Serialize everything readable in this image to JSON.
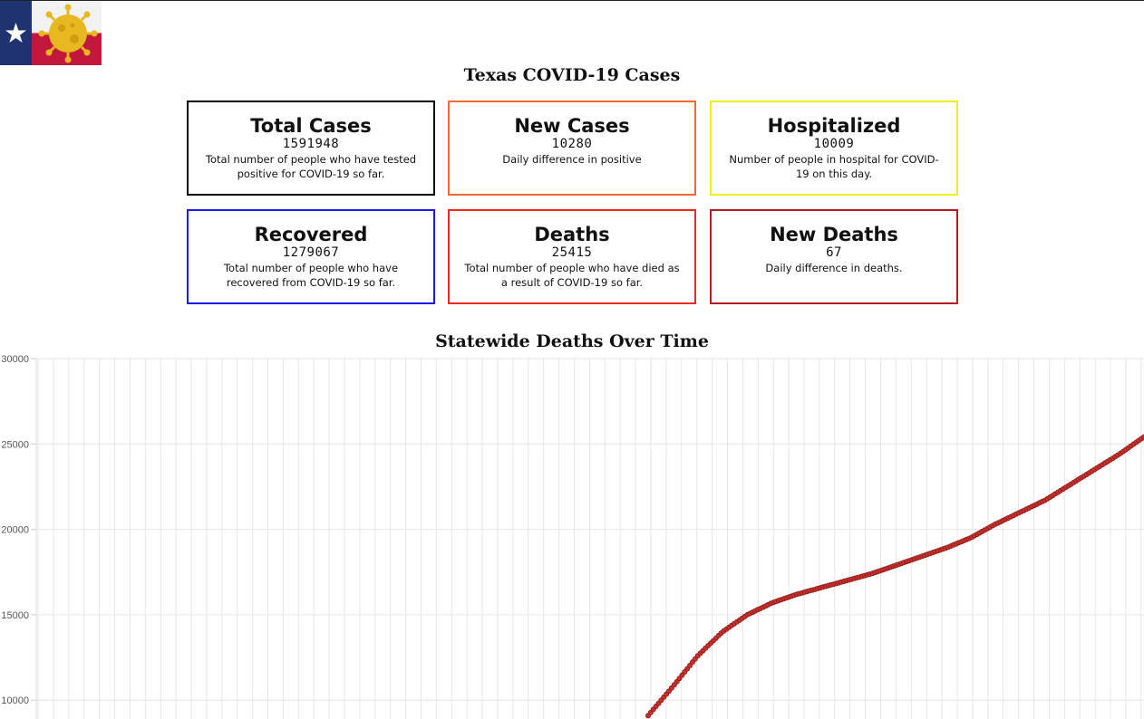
{
  "page": {
    "title": "Texas COVID-19 Cases",
    "chart_title": "Statewide Deaths Over Time"
  },
  "colors": {
    "black": "#000000",
    "orange": "#f26b2e",
    "yellow": "#f2ee1a",
    "blue": "#1a1aee",
    "red": "#ee2a1a",
    "darkred": "#b21c1c",
    "point_fill": "#c9302c",
    "point_stroke": "#8a1c1a",
    "grid": "#e6e6e6"
  },
  "cards": [
    {
      "title": "Total Cases",
      "value": "1591948",
      "desc": "Total number of people who have tested positive for COVID-19 so far.",
      "color": "#000000"
    },
    {
      "title": "New Cases",
      "value": "10280",
      "desc": "Daily difference in positive",
      "color": "#f26b2e"
    },
    {
      "title": "Hospitalized",
      "value": "10009",
      "desc": "Number of people in hospital for COVID-19 on this day.",
      "color": "#f2ee1a"
    },
    {
      "title": "Recovered",
      "value": "1279067",
      "desc": "Total number of people who have recovered from COVID-19 so far.",
      "color": "#1a1aee"
    },
    {
      "title": "Deaths",
      "value": "25415",
      "desc": "Total number of people who have died as a result of COVID-19 so far.",
      "color": "#ee2a1a"
    },
    {
      "title": "New Deaths",
      "value": "67",
      "desc": "Daily difference in deaths.",
      "color": "#b21c1c"
    }
  ],
  "chart_data": {
    "type": "scatter",
    "title": "Statewide Deaths Over Time",
    "xlabel": "",
    "ylabel": "",
    "ylim": [
      9000,
      30000
    ],
    "yticks": [
      "30000",
      "25000",
      "20000",
      "15000",
      "10000"
    ],
    "grid": true,
    "series": [
      {
        "x": [
          0,
          10,
          20,
          30,
          40,
          50,
          60,
          70,
          80,
          90,
          100,
          110,
          120,
          130,
          140,
          150,
          160,
          170,
          180,
          190,
          200
        ],
        "y": [
          9100,
          10800,
          12600,
          14000,
          15000,
          15700,
          16200,
          16600,
          17000,
          17400,
          17900,
          18400,
          18900,
          19500,
          20300,
          21000,
          21700,
          22600,
          23500,
          24400,
          25415
        ]
      }
    ]
  }
}
